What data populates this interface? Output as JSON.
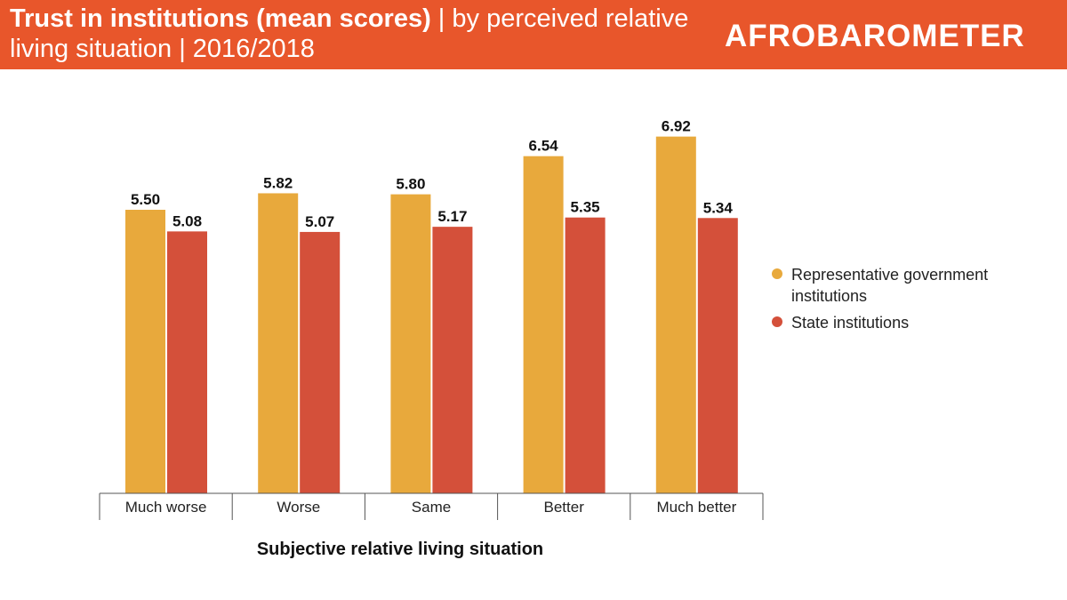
{
  "header": {
    "title_bold": "Trust in institutions (mean scores)",
    "title_rest": " | by perceived relative living situation | 2016/2018",
    "logo": "AFROBAROMETER",
    "bg_color": "#e8562b"
  },
  "chart_data": {
    "type": "bar",
    "title": "Trust in institutions (mean scores) | by perceived relative living situation | 2016/2018",
    "xlabel": "Subjective relative living situation",
    "ylabel": "",
    "categories": [
      "Much worse",
      "Worse",
      "Same",
      "Better",
      "Much better"
    ],
    "series": [
      {
        "name": "Representative government institutions",
        "color": "#e8a93c",
        "values": [
          5.5,
          5.82,
          5.8,
          6.54,
          6.92
        ],
        "labels": [
          "5.50",
          "5.82",
          "5.80",
          "6.54",
          "6.92"
        ]
      },
      {
        "name": "State institutions",
        "color": "#d4503a",
        "values": [
          5.08,
          5.07,
          5.17,
          5.35,
          5.34
        ],
        "labels": [
          "5.08",
          "5.07",
          "5.17",
          "5.35",
          "5.34"
        ]
      }
    ],
    "ylim": [
      0,
      7
    ],
    "grid": false,
    "legend_position": "right"
  }
}
